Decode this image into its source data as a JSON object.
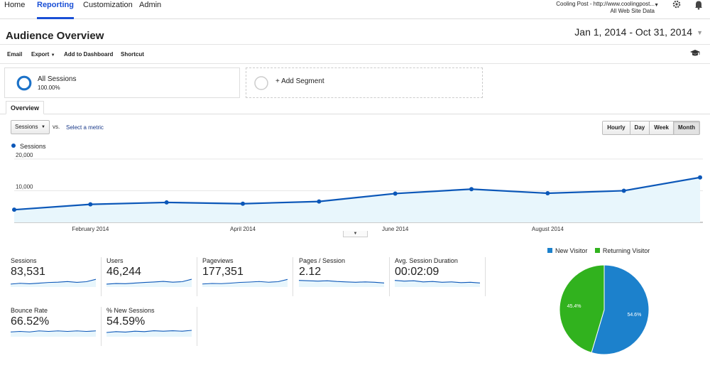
{
  "nav": {
    "tabs": [
      {
        "label": "Home"
      },
      {
        "label": "Reporting"
      },
      {
        "label": "Customization"
      },
      {
        "label": "Admin"
      }
    ],
    "active_tab": "Reporting",
    "account": {
      "line1": "Cooling Post - http://www.coolingpost...",
      "line2": "All Web Site Data"
    },
    "icons": [
      "gear-icon",
      "bell-icon"
    ]
  },
  "header": {
    "title": "Audience Overview",
    "date_range": "Jan 1, 2014 - Oct 31, 2014"
  },
  "toolbar": {
    "email": "Email",
    "export": "Export",
    "add_to_dashboard": "Add to Dashboard",
    "shortcut": "Shortcut",
    "right_icon": "graduation-cap-icon"
  },
  "segments": {
    "all": {
      "title": "All Sessions",
      "percent": "100.00%"
    },
    "add_label": "+ Add Segment"
  },
  "tab": {
    "overview": "Overview"
  },
  "controls": {
    "metric": "Sessions",
    "vs": "vs.",
    "select_metric": "Select a metric",
    "granularity": [
      "Hourly",
      "Day",
      "Week",
      "Month"
    ],
    "selected_granularity": "Month"
  },
  "colors": {
    "line": "#0b57b8",
    "area": "#e8f6fc",
    "new_visitor": "#1c81cc",
    "returning_visitor": "#31b21e"
  },
  "chart_data": [
    {
      "type": "line",
      "series": [
        {
          "name": "Sessions",
          "x": [
            "Jan 2014",
            "Feb 2014",
            "Mar 2014",
            "Apr 2014",
            "May 2014",
            "Jun 2014",
            "Jul 2014",
            "Aug 2014",
            "Sep 2014",
            "Oct 2014"
          ],
          "values": [
            4000,
            5700,
            6300,
            5900,
            6600,
            9100,
            10500,
            9200,
            10000,
            14200
          ]
        }
      ],
      "ytick_labels": [
        "20,000",
        "10,000"
      ],
      "yticks": [
        20000,
        10000
      ],
      "xtick_labels": [
        "February 2014",
        "April 2014",
        "June 2014",
        "August 2014"
      ],
      "ylim": [
        0,
        22000
      ],
      "grid": true,
      "legend": "top-left"
    },
    {
      "type": "pie",
      "categories": [
        "New Visitor",
        "Returning Visitor"
      ],
      "values": [
        54.6,
        45.4
      ],
      "labels": [
        "54.6%",
        "45.4%"
      ],
      "legend": "top"
    }
  ],
  "scorecards": [
    {
      "label": "Sessions",
      "value": "83,531",
      "spark": [
        3,
        3.5,
        3.2,
        3.6,
        4,
        4.2,
        4.6,
        4.1,
        4.5,
        6
      ]
    },
    {
      "label": "Users",
      "value": "46,244",
      "spark": [
        3,
        3.4,
        3.3,
        3.7,
        4.1,
        4.4,
        4.8,
        4.3,
        4.6,
        6.2
      ]
    },
    {
      "label": "Pageviews",
      "value": "177,351",
      "spark": [
        3,
        3.3,
        3.2,
        3.5,
        3.9,
        4.1,
        4.4,
        4,
        4.3,
        5.6
      ]
    },
    {
      "label": "Pages / Session",
      "value": "2.12",
      "spark": [
        5,
        4.9,
        4.8,
        4.9,
        4.7,
        4.6,
        4.5,
        4.6,
        4.5,
        4.3
      ]
    },
    {
      "label": "Avg. Session Duration",
      "value": "00:02:09",
      "spark": [
        5,
        4.8,
        4.9,
        4.6,
        4.7,
        4.5,
        4.6,
        4.4,
        4.5,
        4.3
      ]
    },
    {
      "label": "Bounce Rate",
      "value": "66.52%",
      "spark": [
        4,
        4.1,
        4,
        4.2,
        4.1,
        4.2,
        4.1,
        4.2,
        4.1,
        4.2
      ]
    },
    {
      "label": "% New Sessions",
      "value": "54.59%",
      "spark": [
        4,
        4.2,
        4.1,
        4.3,
        4.2,
        4.4,
        4.3,
        4.4,
        4.3,
        4.5
      ]
    }
  ]
}
